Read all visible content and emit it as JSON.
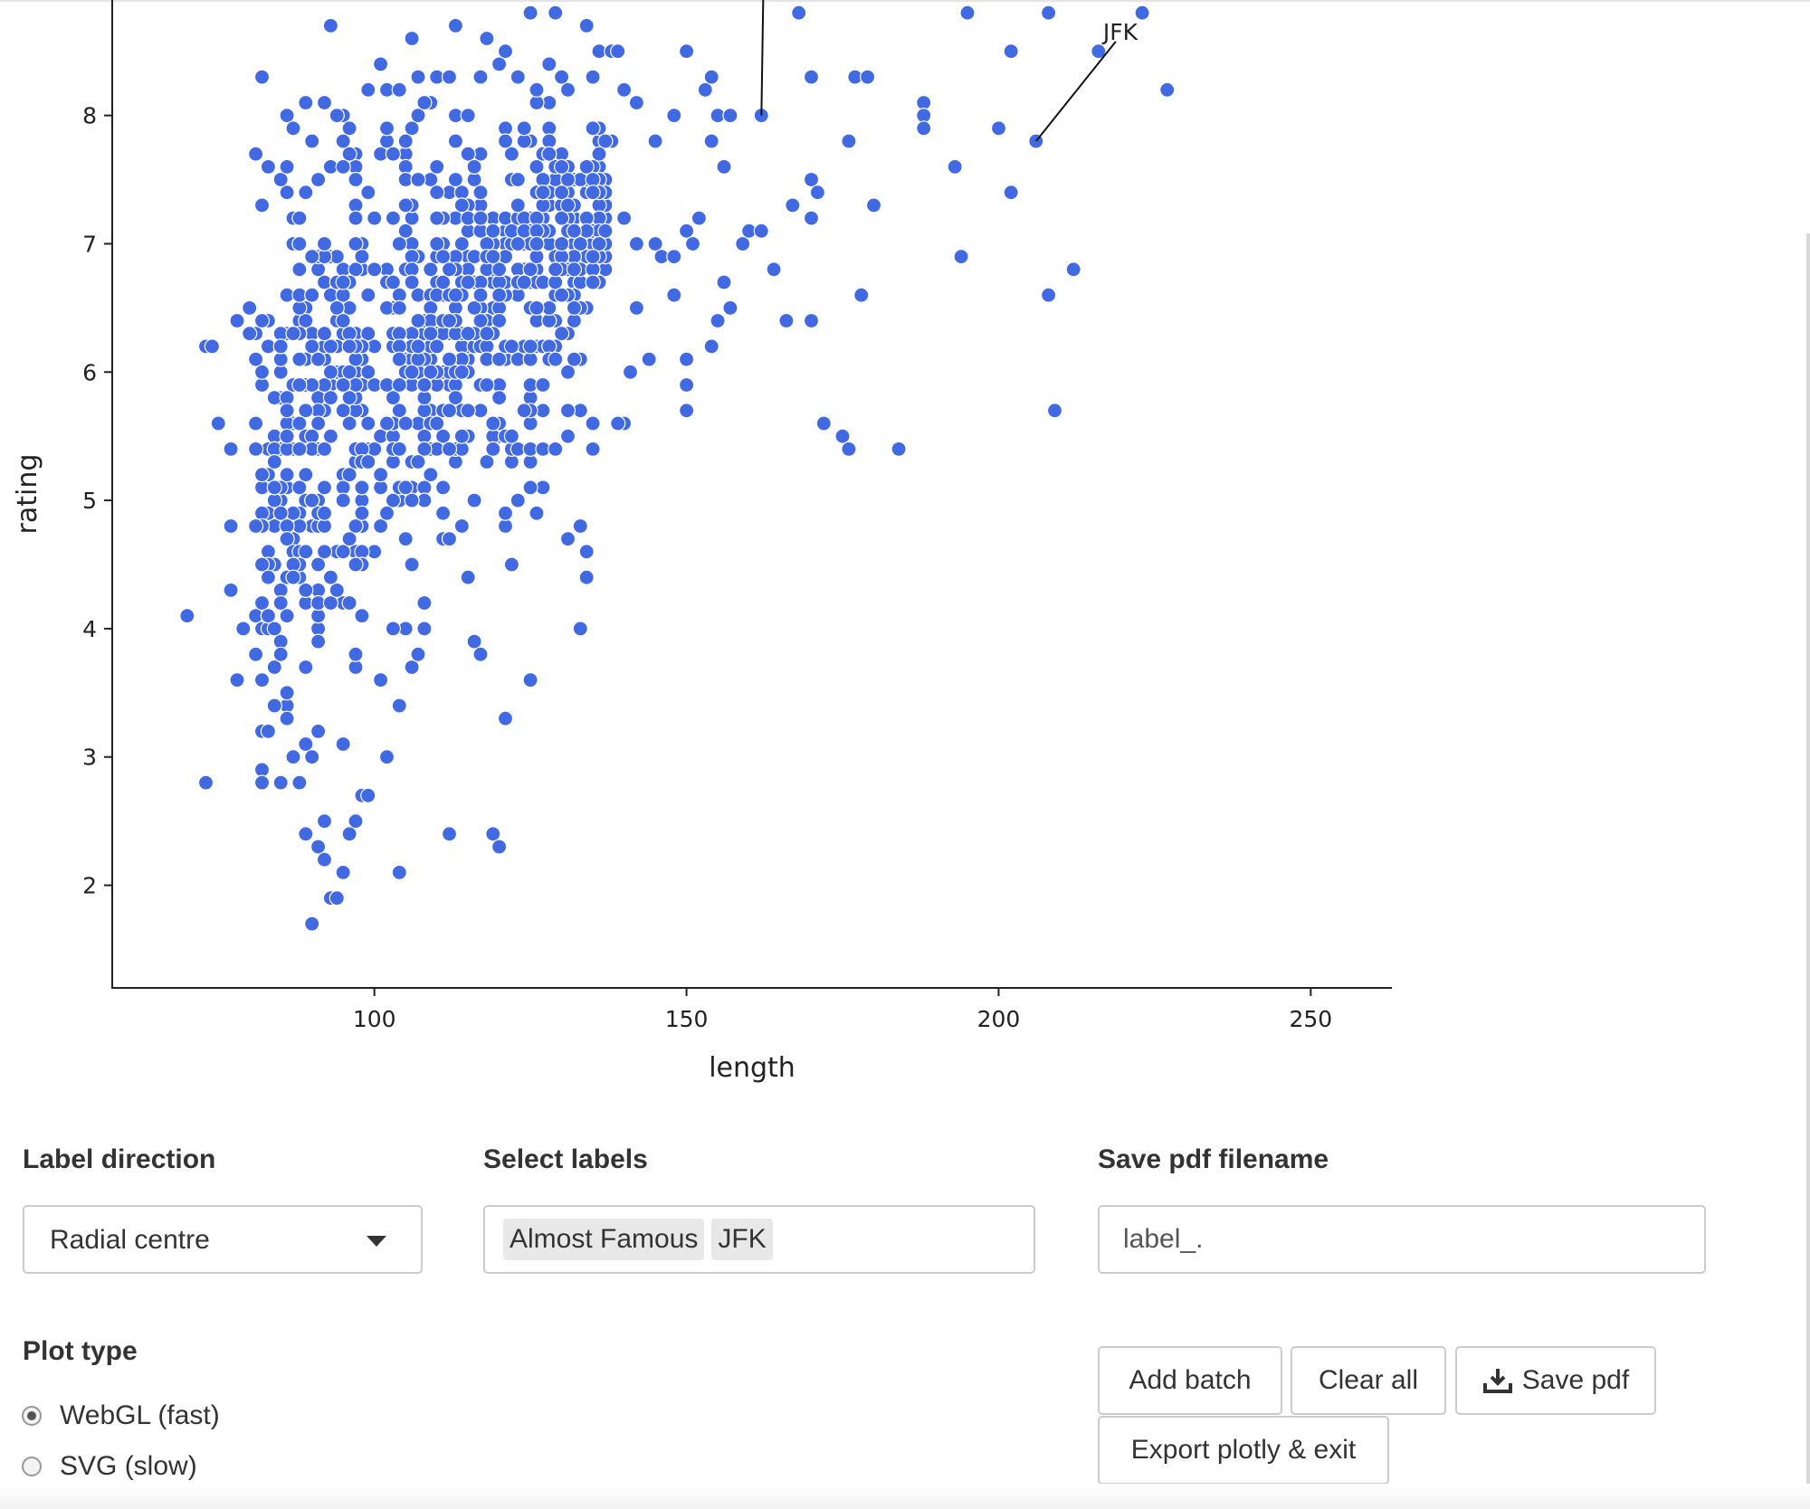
{
  "chart_data": {
    "type": "scatter",
    "title": "",
    "xlabel": "length",
    "ylabel": "rating",
    "xlim": [
      58,
      263
    ],
    "ylim": [
      1.2,
      8.9
    ],
    "x_ticks": [
      100,
      150,
      200,
      250
    ],
    "y_ticks": [
      2,
      3,
      4,
      5,
      6,
      7,
      8
    ],
    "grid": false,
    "marker_color": "#4169e1",
    "series": [
      {
        "name": "",
        "points": [
          [
            70,
            4.1
          ],
          [
            73,
            6.2
          ],
          [
            74,
            6.2
          ],
          [
            73,
            2.8
          ],
          [
            75,
            5.6
          ],
          [
            77,
            5.4
          ],
          [
            77,
            4.8
          ],
          [
            77,
            4.3
          ],
          [
            78,
            3.6
          ],
          [
            79,
            4.0
          ],
          [
            80,
            6.3
          ],
          [
            78,
            6.4
          ],
          [
            80,
            6.5
          ],
          [
            81,
            6.1
          ],
          [
            82,
            8.3
          ],
          [
            82,
            7.3
          ],
          [
            83,
            7.6
          ],
          [
            81,
            7.7
          ],
          [
            82,
            2.9
          ],
          [
            82,
            2.8
          ],
          [
            83,
            3.2
          ],
          [
            84,
            3.4
          ],
          [
            85,
            2.8
          ],
          [
            86,
            3.5
          ],
          [
            85,
            4.2
          ],
          [
            86,
            4.7
          ],
          [
            84,
            5.3
          ],
          [
            86,
            5.5
          ],
          [
            85,
            7.5
          ],
          [
            86,
            7.6
          ],
          [
            86,
            8.0
          ],
          [
            87,
            7.9
          ],
          [
            88,
            7.2
          ],
          [
            88,
            7.0
          ],
          [
            89,
            8.1
          ],
          [
            90,
            7.8
          ],
          [
            88,
            2.8
          ],
          [
            89,
            2.4
          ],
          [
            90,
            3.0
          ],
          [
            91,
            2.3
          ],
          [
            92,
            2.2
          ],
          [
            93,
            1.9
          ],
          [
            90,
            1.7
          ],
          [
            92,
            2.5
          ],
          [
            94,
            1.9
          ],
          [
            95,
            2.1
          ],
          [
            96,
            2.4
          ],
          [
            97,
            2.5
          ],
          [
            98,
            2.7
          ],
          [
            99,
            2.7
          ],
          [
            93,
            8.7
          ],
          [
            92,
            8.1
          ],
          [
            94,
            8.0
          ],
          [
            95,
            7.6
          ],
          [
            97,
            7.5
          ],
          [
            99,
            8.2
          ],
          [
            101,
            8.4
          ],
          [
            102,
            8.2
          ],
          [
            104,
            8.2
          ],
          [
            106,
            8.6
          ],
          [
            107,
            8.0
          ],
          [
            108,
            8.1
          ],
          [
            110,
            8.3
          ],
          [
            112,
            8.3
          ],
          [
            113,
            8.7
          ],
          [
            115,
            8.0
          ],
          [
            117,
            8.3
          ],
          [
            118,
            8.6
          ],
          [
            120,
            8.4
          ],
          [
            121,
            8.5
          ],
          [
            123,
            8.3
          ],
          [
            125,
            8.8
          ],
          [
            126,
            8.2
          ],
          [
            128,
            8.4
          ],
          [
            129,
            8.8
          ],
          [
            130,
            8.3
          ],
          [
            131,
            8.2
          ],
          [
            134,
            8.7
          ],
          [
            135,
            8.3
          ],
          [
            136,
            8.5
          ],
          [
            138,
            8.5
          ],
          [
            139,
            8.5
          ],
          [
            140,
            8.2
          ],
          [
            142,
            8.1
          ],
          [
            145,
            7.8
          ],
          [
            148,
            8.0
          ],
          [
            150,
            8.5
          ],
          [
            153,
            8.2
          ],
          [
            154,
            8.3
          ],
          [
            155,
            8.0
          ],
          [
            156,
            7.6
          ],
          [
            157,
            8.0
          ],
          [
            154,
            7.8
          ],
          [
            152,
            7.2
          ],
          [
            156,
            6.7
          ],
          [
            157,
            6.5
          ],
          [
            155,
            6.4
          ],
          [
            154,
            6.2
          ],
          [
            150,
            6.1
          ],
          [
            150,
            5.9
          ],
          [
            150,
            5.7
          ],
          [
            140,
            7.2
          ],
          [
            142,
            7.0
          ],
          [
            145,
            7.0
          ],
          [
            146,
            6.9
          ],
          [
            148,
            6.9
          ],
          [
            150,
            7.1
          ],
          [
            151,
            7.0
          ],
          [
            148,
            6.6
          ],
          [
            144,
            6.1
          ],
          [
            141,
            6.0
          ],
          [
            140,
            5.6
          ],
          [
            139,
            5.6
          ],
          [
            142,
            6.5
          ],
          [
            159,
            7.0
          ],
          [
            160,
            7.1
          ],
          [
            162,
            7.1
          ],
          [
            162,
            8.0
          ],
          [
            164,
            6.8
          ],
          [
            166,
            6.4
          ],
          [
            167,
            7.3
          ],
          [
            168,
            8.8
          ],
          [
            170,
            8.3
          ],
          [
            170,
            7.5
          ],
          [
            171,
            7.4
          ],
          [
            170,
            7.2
          ],
          [
            170,
            6.4
          ],
          [
            176,
            7.8
          ],
          [
            177,
            8.3
          ],
          [
            178,
            6.6
          ],
          [
            179,
            8.3
          ],
          [
            180,
            7.3
          ],
          [
            172,
            5.6
          ],
          [
            175,
            5.5
          ],
          [
            176,
            5.4
          ],
          [
            184,
            5.4
          ],
          [
            188,
            8.1
          ],
          [
            188,
            8.0
          ],
          [
            188,
            7.9
          ],
          [
            193,
            7.6
          ],
          [
            194,
            6.9
          ],
          [
            195,
            8.8
          ],
          [
            200,
            7.9
          ],
          [
            202,
            8.5
          ],
          [
            202,
            7.4
          ],
          [
            206,
            7.8
          ],
          [
            208,
            8.8
          ],
          [
            208,
            6.6
          ],
          [
            209,
            5.7
          ],
          [
            212,
            6.8
          ],
          [
            216,
            8.5
          ],
          [
            223,
            8.8
          ],
          [
            227,
            8.2
          ],
          [
            133,
            4.8
          ],
          [
            134,
            4.6
          ],
          [
            134,
            4.4
          ],
          [
            133,
            4.0
          ],
          [
            131,
            4.7
          ],
          [
            125,
            3.6
          ],
          [
            121,
            3.3
          ],
          [
            119,
            2.4
          ],
          [
            120,
            2.3
          ],
          [
            112,
            2.4
          ],
          [
            104,
            2.1
          ],
          [
            102,
            3.0
          ],
          [
            104,
            3.4
          ],
          [
            101,
            3.6
          ],
          [
            106,
            3.7
          ],
          [
            105,
            4.0
          ],
          [
            103,
            4.0
          ],
          [
            108,
            4.0
          ],
          [
            107,
            3.8
          ],
          [
            108,
            4.2
          ],
          [
            115,
            4.4
          ],
          [
            116,
            3.9
          ],
          [
            117,
            3.8
          ],
          [
            121,
            4.8
          ],
          [
            122,
            4.5
          ],
          [
            126,
            4.9
          ],
          [
            127,
            5.1
          ],
          [
            125,
            5.1
          ],
          [
            125,
            5.4
          ],
          [
            127,
            5.4
          ],
          [
            129,
            5.4
          ],
          [
            131,
            5.5
          ],
          [
            133,
            5.7
          ],
          [
            135,
            5.4
          ],
          [
            135,
            5.6
          ],
          [
            131,
            5.7
          ],
          [
            121,
            4.9
          ],
          [
            123,
            5.0
          ],
          [
            112,
            4.7
          ],
          [
            114,
            4.8
          ],
          [
            116,
            5.0
          ]
        ]
      }
    ],
    "cluster": {
      "x_range": [
        81,
        138
      ],
      "y_center_by_x": [
        [
          82,
          4.9
        ],
        [
          88,
          5.3
        ],
        [
          95,
          5.6
        ],
        [
          102,
          6.1
        ],
        [
          110,
          6.4
        ],
        [
          118,
          6.5
        ],
        [
          126,
          6.8
        ],
        [
          134,
          7.1
        ],
        [
          138,
          7.3
        ]
      ],
      "y_spread_by_x": [
        [
          82,
          1.3
        ],
        [
          88,
          1.6
        ],
        [
          95,
          1.6
        ],
        [
          102,
          1.3
        ],
        [
          110,
          1.1
        ],
        [
          118,
          0.9
        ],
        [
          126,
          0.9
        ],
        [
          134,
          0.6
        ],
        [
          138,
          0.5
        ]
      ],
      "count": 820
    },
    "annotations": [
      {
        "text": "",
        "x": 162,
        "y": 8.0
      },
      {
        "text": "JFK",
        "x": 206,
        "y": 7.8
      }
    ]
  },
  "controls": {
    "label_direction": {
      "label": "Label direction",
      "value": "Radial centre"
    },
    "select_labels": {
      "label": "Select labels",
      "tags": [
        "Almost Famous",
        "JFK"
      ]
    },
    "save_filename": {
      "label": "Save pdf filename",
      "value": "label_."
    },
    "plot_type": {
      "label": "Plot type",
      "options": [
        {
          "label": "WebGL (fast)",
          "checked": true
        },
        {
          "label": "SVG (slow)",
          "checked": false
        }
      ]
    },
    "buttons": {
      "add_batch": "Add batch",
      "clear_all": "Clear all",
      "save_pdf": "Save pdf",
      "export": "Export plotly & exit"
    },
    "icons": {
      "save_pdf_icon": "download-icon"
    }
  }
}
